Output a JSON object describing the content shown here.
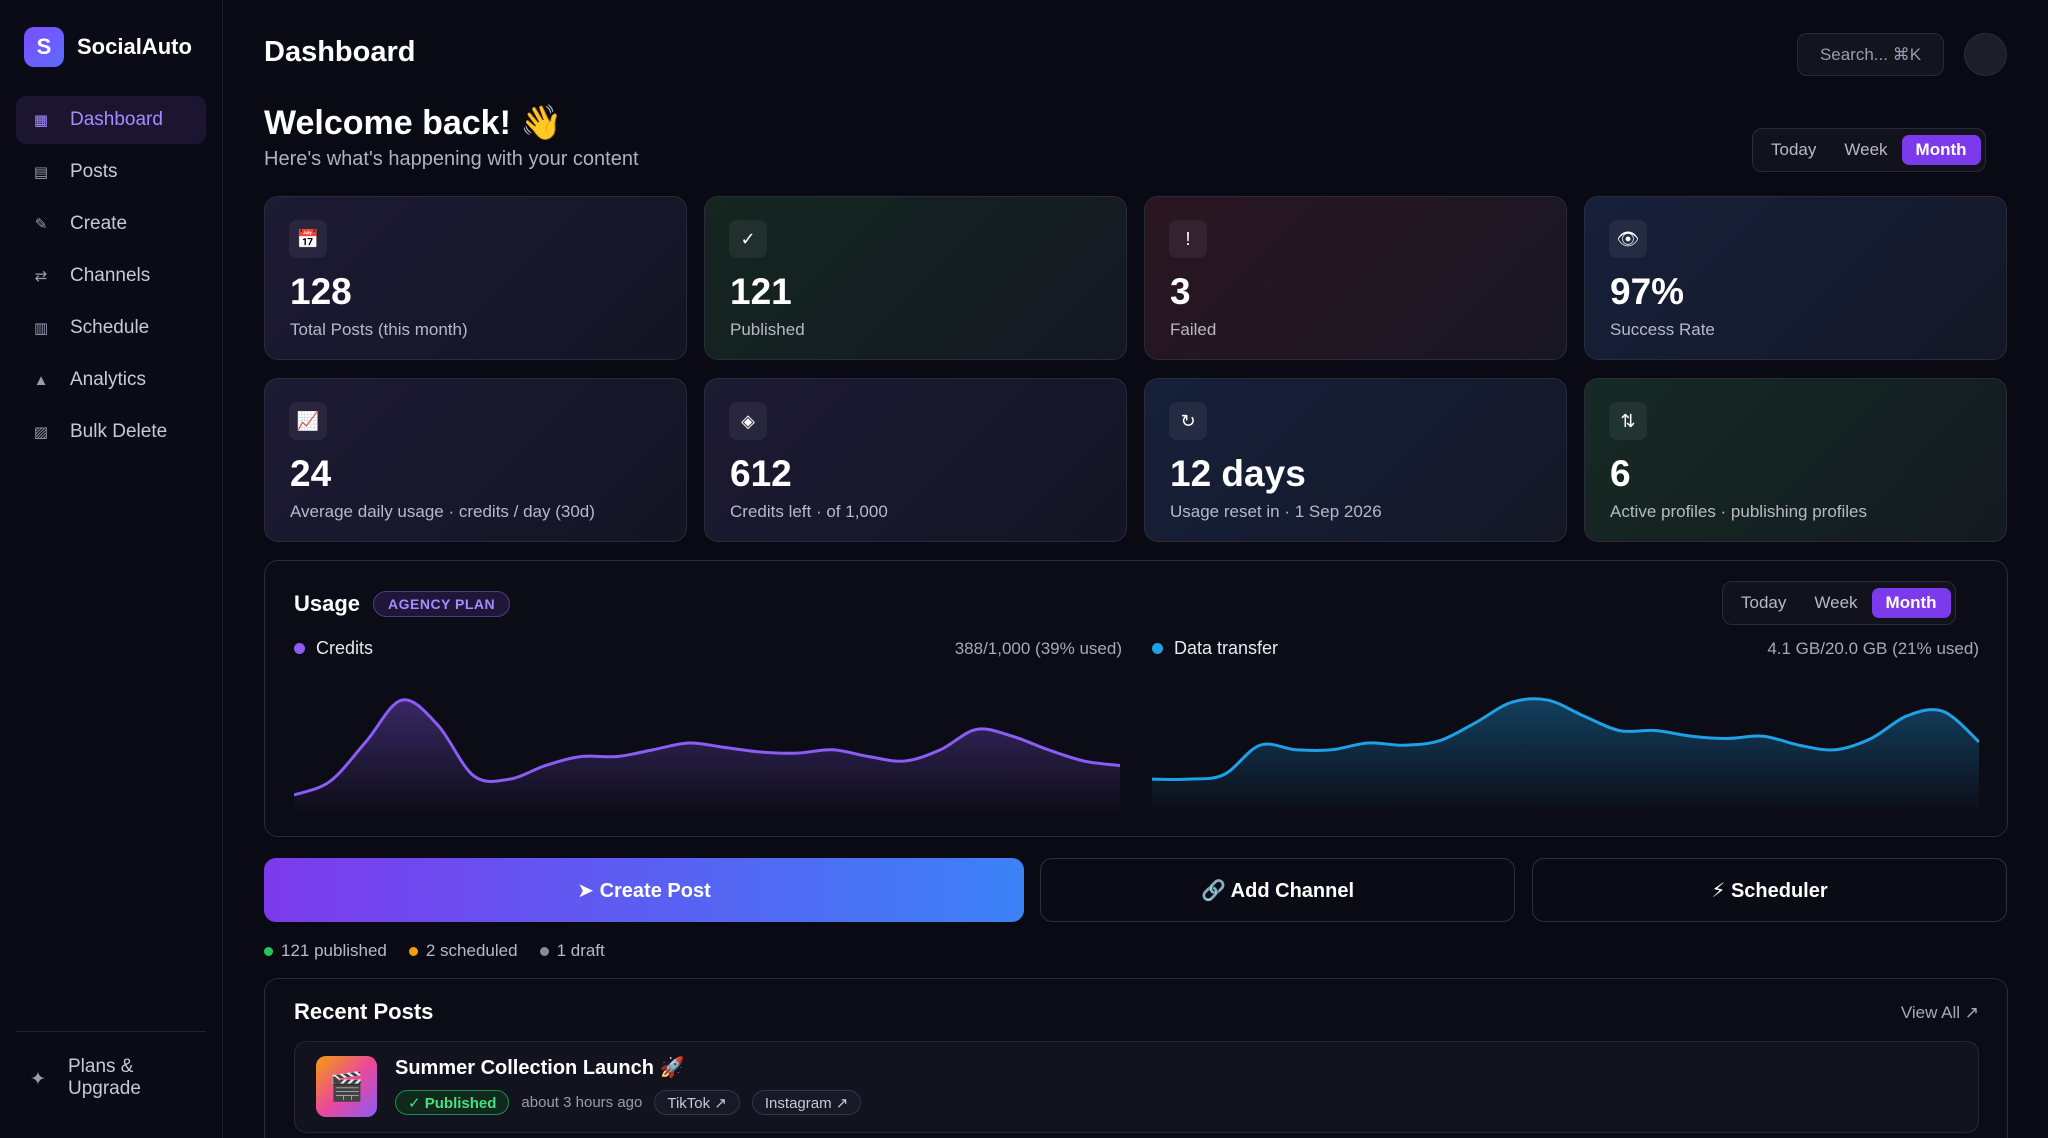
{
  "brand": {
    "initial": "S",
    "name": "SocialAuto"
  },
  "sidebar": {
    "items": [
      {
        "label": "Dashboard",
        "icon": "dashboard-icon",
        "glyph": "▦",
        "active": true
      },
      {
        "label": "Posts",
        "icon": "posts-icon",
        "glyph": "▤"
      },
      {
        "label": "Create",
        "icon": "pencil-icon",
        "glyph": "✎"
      },
      {
        "label": "Channels",
        "icon": "channels-icon",
        "glyph": "⇄"
      },
      {
        "label": "Schedule",
        "icon": "calendar-icon",
        "glyph": "▥"
      },
      {
        "label": "Analytics",
        "icon": "analytics-icon",
        "glyph": "▲"
      },
      {
        "label": "Bulk Delete",
        "icon": "trash-icon",
        "glyph": "▨"
      }
    ],
    "upgrade": {
      "label": "Plans & Upgrade",
      "glyph": "✦"
    }
  },
  "header": {
    "title": "Dashboard",
    "search_placeholder": "Search... ⌘K"
  },
  "welcome": {
    "title": "Welcome back! 👋",
    "subtitle": "Here's what's happening with your content"
  },
  "range": {
    "options": [
      "Today",
      "Week",
      "Month"
    ],
    "selected": "Month"
  },
  "stats": [
    {
      "glyph": "📅",
      "value": "128",
      "label": "Total Posts (this month)"
    },
    {
      "glyph": "✓",
      "value": "121",
      "label": "Published"
    },
    {
      "glyph": "!",
      "value": "3",
      "label": "Failed"
    },
    {
      "glyph": "👁",
      "value": "97%",
      "label": "Success Rate"
    },
    {
      "glyph": "📈",
      "value": "24",
      "label": "Average daily usage · credits / day (30d)"
    },
    {
      "glyph": "◈",
      "value": "612",
      "label": "Credits left · of 1,000"
    },
    {
      "glyph": "↻",
      "value": "12 days",
      "label": "Usage reset in · 1 Sep 2026"
    },
    {
      "glyph": "⇅",
      "value": "6",
      "label": "Active profiles · publishing profiles"
    }
  ],
  "usage": {
    "title": "Usage",
    "plan": "AGENCY PLAN",
    "credits": {
      "label": "Credits",
      "value": "388/1,000 (39% used)",
      "color": "#8b5cf6"
    },
    "transfer": {
      "label": "Data transfer",
      "value": "4.1 GB/20.0 GB (21% used)",
      "color": "#1ea1e6"
    }
  },
  "chart_data": [
    {
      "type": "area",
      "name": "Credits",
      "values": [
        8,
        20,
        55,
        92,
        70,
        25,
        22,
        34,
        42,
        42,
        48,
        54,
        50,
        46,
        45,
        48,
        42,
        38,
        48,
        66,
        60,
        48,
        38,
        34
      ]
    },
    {
      "type": "area",
      "name": "Data transfer",
      "values": [
        22,
        22,
        26,
        52,
        48,
        48,
        54,
        52,
        56,
        72,
        90,
        92,
        78,
        65,
        65,
        60,
        58,
        60,
        52,
        48,
        58,
        78,
        82,
        55
      ]
    }
  ],
  "actions": {
    "create_post": "➤ Create Post",
    "add_channel": "🔗 Add Channel",
    "scheduler": "⚡ Scheduler"
  },
  "status_summary": [
    {
      "label": "121 published",
      "color": "#22c55e"
    },
    {
      "label": "2 scheduled",
      "color": "#f59e0b"
    },
    {
      "label": "1 draft",
      "color": "#8a8aa0"
    }
  ],
  "recent": {
    "title": "Recent Posts",
    "view_all": "View All ↗",
    "posts": [
      {
        "thumb": "🎬",
        "title": "Summer Collection Launch 🚀",
        "status": "✓ Published",
        "time": "about 3 hours ago",
        "platforms": [
          "TikTok ↗",
          "Instagram ↗"
        ]
      }
    ]
  }
}
